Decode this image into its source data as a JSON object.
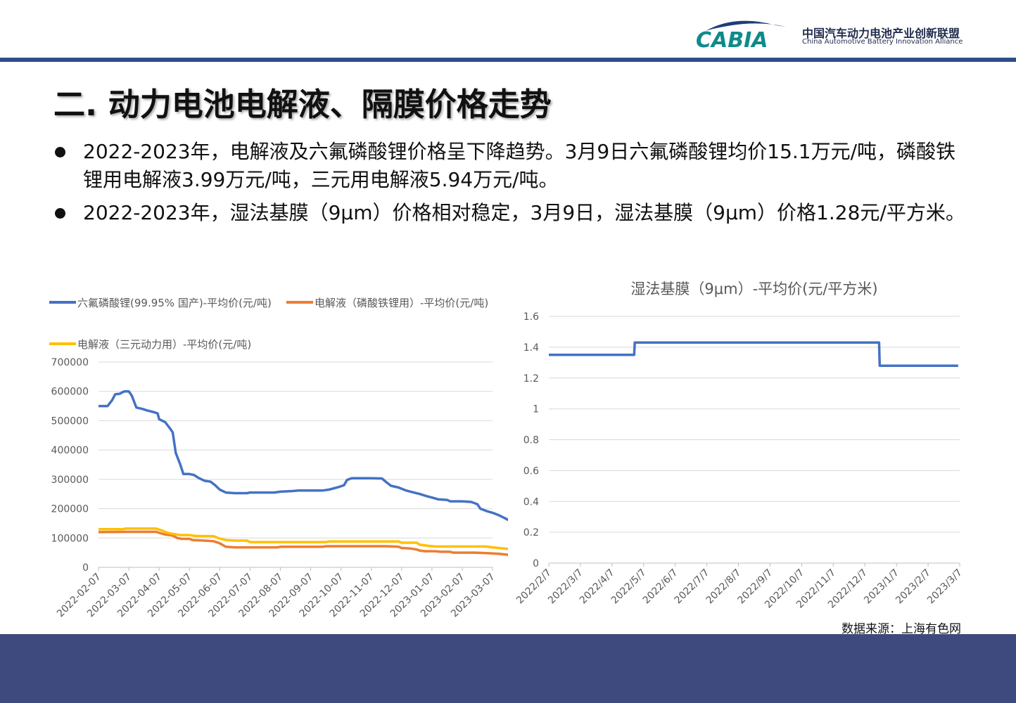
{
  "header": {
    "logo_text": "CABIA",
    "org_name_cn": "中国汽车动力电池产业创新联盟",
    "org_name_en": "China Automotive Battery Innovation Alliance"
  },
  "title": "二. 动力电池电解液、隔膜价格走势",
  "bullets": [
    "2022-2023年，电解液及六氟磷酸锂价格呈下降趋势。3月9日六氟磷酸锂均价15.1万元/吨，磷酸铁锂用电解液3.99万元/吨，三元用电解液5.94万元/吨。",
    "2022-2023年，湿法基膜（9μm）价格相对稳定，3月9日，湿法基膜（9μm）价格1.28元/平方米。"
  ],
  "source": "数据来源：上海有色网",
  "colors": {
    "blue": "#4472c4",
    "orange": "#ed7d31",
    "yellow": "#ffc000",
    "footer": "#3e4a7d",
    "topbar": "#2f4e87"
  },
  "chart_data": [
    {
      "type": "line",
      "title": "",
      "legend_position": "top",
      "ylim": [
        0,
        700000
      ],
      "yticks": [
        "700000",
        "600000",
        "500000",
        "400000",
        "300000",
        "200000",
        "100000",
        "0"
      ],
      "xticks": [
        "2022-02-07",
        "2022-03-07",
        "2022-04-07",
        "2022-05-07",
        "2022-06-07",
        "2022-07-07",
        "2022-08-07",
        "2022-09-07",
        "2022-10-07",
        "2022-11-07",
        "2022-12-07",
        "2023-01-07",
        "2023-02-07",
        "2023-03-07"
      ],
      "grid": true,
      "series": [
        {
          "name": "六氟磷酸锂(99.95% 国产)-平均价(元/吨)",
          "color": "#4472c4",
          "points": [
            [
              0,
              550000
            ],
            [
              0.3,
              550000
            ],
            [
              0.45,
              570000
            ],
            [
              0.55,
              590000
            ],
            [
              0.7,
              592000
            ],
            [
              0.85,
              600000
            ],
            [
              1.0,
              600000
            ],
            [
              1.1,
              585000
            ],
            [
              1.25,
              545000
            ],
            [
              1.45,
              540000
            ],
            [
              1.6,
              535000
            ],
            [
              1.8,
              530000
            ],
            [
              1.95,
              525000
            ],
            [
              2.0,
              505000
            ],
            [
              2.2,
              495000
            ],
            [
              2.35,
              475000
            ],
            [
              2.45,
              460000
            ],
            [
              2.55,
              390000
            ],
            [
              2.7,
              350000
            ],
            [
              2.8,
              318000
            ],
            [
              3.0,
              318000
            ],
            [
              3.15,
              315000
            ],
            [
              3.3,
              305000
            ],
            [
              3.5,
              295000
            ],
            [
              3.7,
              292000
            ],
            [
              3.85,
              280000
            ],
            [
              4.0,
              265000
            ],
            [
              4.2,
              255000
            ],
            [
              4.5,
              253000
            ],
            [
              4.9,
              253000
            ],
            [
              5.0,
              255000
            ],
            [
              5.8,
              255000
            ],
            [
              6.0,
              258000
            ],
            [
              6.4,
              260000
            ],
            [
              6.6,
              262000
            ],
            [
              7.0,
              262000
            ],
            [
              7.4,
              262000
            ],
            [
              7.6,
              265000
            ],
            [
              7.9,
              273000
            ],
            [
              8.1,
              280000
            ],
            [
              8.2,
              298000
            ],
            [
              8.35,
              304000
            ],
            [
              8.7,
              304000
            ],
            [
              9.0,
              304000
            ],
            [
              9.35,
              303000
            ],
            [
              9.5,
              290000
            ],
            [
              9.65,
              278000
            ],
            [
              9.9,
              272000
            ],
            [
              10.15,
              262000
            ],
            [
              10.4,
              255000
            ],
            [
              10.6,
              250000
            ],
            [
              10.85,
              242000
            ],
            [
              11.0,
              238000
            ],
            [
              11.2,
              232000
            ],
            [
              11.5,
              230000
            ],
            [
              11.6,
              225000
            ],
            [
              12.0,
              225000
            ],
            [
              12.3,
              223000
            ],
            [
              12.5,
              215000
            ],
            [
              12.6,
              200000
            ],
            [
              12.8,
              192000
            ],
            [
              13.0,
              186000
            ],
            [
              13.2,
              178000
            ],
            [
              13.4,
              168000
            ],
            [
              13.55,
              160000
            ],
            [
              13.7,
              155000
            ],
            [
              13.8,
              154000
            ]
          ]
        },
        {
          "name": "电解液（磷酸铁锂用）-平均价(元/吨)",
          "color": "#ed7d31",
          "points": [
            [
              0,
              120000
            ],
            [
              1.0,
              121000
            ],
            [
              1.9,
              121000
            ],
            [
              2.05,
              116000
            ],
            [
              2.2,
              112000
            ],
            [
              2.45,
              108000
            ],
            [
              2.6,
              100000
            ],
            [
              2.75,
              97000
            ],
            [
              3.0,
              97000
            ],
            [
              3.1,
              93000
            ],
            [
              3.5,
              91000
            ],
            [
              3.8,
              89000
            ],
            [
              4.0,
              82000
            ],
            [
              4.1,
              76000
            ],
            [
              4.2,
              70000
            ],
            [
              4.5,
              68000
            ],
            [
              5.0,
              68000
            ],
            [
              5.5,
              68000
            ],
            [
              5.9,
              68000
            ],
            [
              6.0,
              70000
            ],
            [
              7.0,
              70000
            ],
            [
              7.4,
              70000
            ],
            [
              7.5,
              72000
            ],
            [
              8.5,
              72000
            ],
            [
              9.5,
              72000
            ],
            [
              9.9,
              70000
            ],
            [
              10.0,
              66000
            ],
            [
              10.3,
              64000
            ],
            [
              10.5,
              61000
            ],
            [
              10.6,
              57000
            ],
            [
              10.8,
              55000
            ],
            [
              11.1,
              55000
            ],
            [
              11.3,
              53000
            ],
            [
              11.6,
              53000
            ],
            [
              11.7,
              50000
            ],
            [
              12.4,
              50000
            ],
            [
              12.7,
              49000
            ],
            [
              12.9,
              48000
            ],
            [
              13.2,
              46000
            ],
            [
              13.5,
              43000
            ],
            [
              13.8,
              40000
            ]
          ]
        },
        {
          "name": "电解液（三元动力用）-平均价(元/吨)",
          "color": "#ffc000",
          "points": [
            [
              0,
              130000
            ],
            [
              0.8,
              130000
            ],
            [
              0.9,
              132000
            ],
            [
              1.9,
              132000
            ],
            [
              2.05,
              127000
            ],
            [
              2.3,
              117000
            ],
            [
              2.5,
              113000
            ],
            [
              2.7,
              110000
            ],
            [
              3.0,
              110000
            ],
            [
              3.2,
              107000
            ],
            [
              3.8,
              106000
            ],
            [
              4.0,
              98000
            ],
            [
              4.2,
              93000
            ],
            [
              4.5,
              91000
            ],
            [
              4.9,
              91000
            ],
            [
              5.0,
              86000
            ],
            [
              6.0,
              86000
            ],
            [
              7.0,
              86000
            ],
            [
              7.5,
              86000
            ],
            [
              7.6,
              88000
            ],
            [
              9.0,
              88000
            ],
            [
              9.9,
              88000
            ],
            [
              10.0,
              84000
            ],
            [
              10.5,
              84000
            ],
            [
              10.6,
              77000
            ],
            [
              10.9,
              73000
            ],
            [
              11.1,
              71000
            ],
            [
              12.0,
              71000
            ],
            [
              12.8,
              71000
            ],
            [
              13.0,
              68000
            ],
            [
              13.3,
              65000
            ],
            [
              13.5,
              63000
            ],
            [
              13.8,
              60000
            ]
          ]
        }
      ]
    },
    {
      "type": "line",
      "title": "湿法基膜（9μm）-平均价(元/平方米)",
      "ylim": [
        0,
        1.6
      ],
      "yticks": [
        "1.6",
        "1.4",
        "1.2",
        "1",
        "0.8",
        "0.6",
        "0.4",
        "0.2",
        "0"
      ],
      "xticks": [
        "2022/2/7",
        "2022/3/7",
        "2022/4/7",
        "2022/5/7",
        "2022/6/7",
        "2022/7/7",
        "2022/8/7",
        "2022/9/7",
        "2022/10/7",
        "2022/11/7",
        "2022/12/7",
        "2023/1/7",
        "2023/2/7",
        "2023/3/7"
      ],
      "grid": true,
      "series": [
        {
          "name": "湿法基膜（9μm）",
          "color": "#4472c4",
          "points": [
            [
              0,
              1.35
            ],
            [
              2.7,
              1.35
            ],
            [
              2.72,
              1.43
            ],
            [
              10.45,
              1.43
            ],
            [
              10.47,
              1.28
            ],
            [
              12.95,
              1.28
            ]
          ]
        }
      ]
    }
  ]
}
